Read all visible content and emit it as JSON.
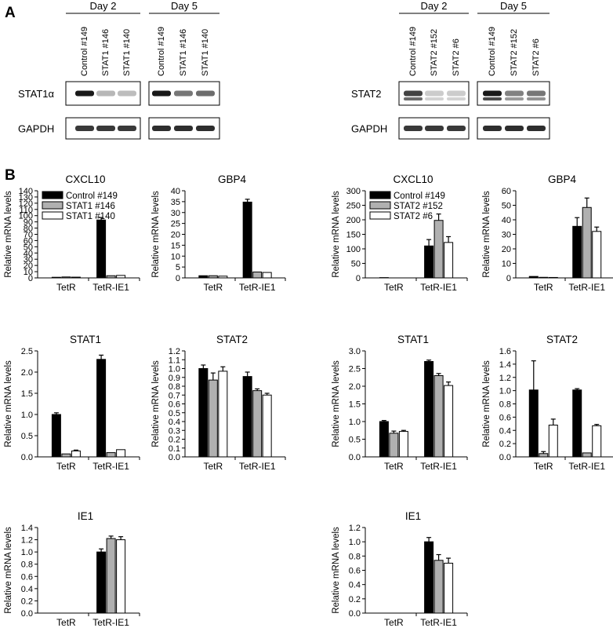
{
  "panels": {
    "a": "A",
    "b": "B"
  },
  "blots": {
    "left": {
      "days": [
        "Day 2",
        "Day 5"
      ],
      "lanes": [
        "Control #149",
        "STAT1 #146",
        "STAT1 #140"
      ],
      "rows": [
        "STAT1α",
        "GAPDH"
      ]
    },
    "right": {
      "days": [
        "Day 2",
        "Day 5"
      ],
      "lanes": [
        "Control #149",
        "STAT2 #152",
        "STAT2 #6"
      ],
      "rows": [
        "STAT2",
        "GAPDH"
      ]
    }
  },
  "ylabel": "Relative mRNA levels",
  "categories": [
    "TetR",
    "TetR-IE1"
  ],
  "series_colors": [
    "#000000",
    "#b0b0b0",
    "#ffffff"
  ],
  "chart_data": [
    {
      "type": "bar",
      "title": "CXCL10",
      "categories": [
        "TetR",
        "TetR-IE1"
      ],
      "ylabel": "Relative mRNA levels",
      "ylim": [
        0,
        140
      ],
      "ticks": [
        0,
        10,
        20,
        30,
        40,
        50,
        60,
        70,
        80,
        90,
        100,
        110,
        120,
        130,
        140
      ],
      "legend": [
        "Control #149",
        "STAT1 #146",
        "STAT1 #140"
      ],
      "series": [
        {
          "name": "Control #149",
          "values": [
            1.0,
            93
          ],
          "err": [
            0,
            4
          ]
        },
        {
          "name": "STAT1 #146",
          "values": [
            1.5,
            3.5
          ],
          "err": [
            0,
            0
          ]
        },
        {
          "name": "STAT1 #140",
          "values": [
            1.2,
            4
          ],
          "err": [
            0,
            0
          ]
        }
      ]
    },
    {
      "type": "bar",
      "title": "GBP4",
      "categories": [
        "TetR",
        "TetR-IE1"
      ],
      "ylabel": "Relative mRNA levels",
      "ylim": [
        0,
        40
      ],
      "ticks": [
        0,
        5,
        10,
        15,
        20,
        25,
        30,
        35,
        40
      ],
      "series": [
        {
          "values": [
            1.0,
            34.8
          ],
          "err": [
            0,
            1.3
          ]
        },
        {
          "values": [
            1.0,
            2.7
          ],
          "err": [
            0,
            0
          ]
        },
        {
          "values": [
            0.8,
            2.5
          ],
          "err": [
            0,
            0
          ]
        }
      ]
    },
    {
      "type": "bar",
      "title": "CXCL10",
      "categories": [
        "TetR",
        "TetR-IE1"
      ],
      "ylabel": "Relative mRNA levels",
      "ylim": [
        0,
        300
      ],
      "ticks": [
        0,
        50,
        100,
        150,
        200,
        250,
        300
      ],
      "legend": [
        "Control #149",
        "STAT2 #152",
        "STAT2 #6"
      ],
      "series": [
        {
          "name": "Control #149",
          "values": [
            1.0,
            110
          ],
          "err": [
            0,
            22
          ]
        },
        {
          "name": "STAT2 #152",
          "values": [
            0.5,
            198
          ],
          "err": [
            0,
            22
          ]
        },
        {
          "name": "STAT2 #6",
          "values": [
            0.5,
            122
          ],
          "err": [
            0,
            20
          ]
        }
      ]
    },
    {
      "type": "bar",
      "title": "GBP4",
      "categories": [
        "TetR",
        "TetR-IE1"
      ],
      "ylabel": "Relative mRNA levels",
      "ylim": [
        0,
        60
      ],
      "ticks": [
        0,
        10,
        20,
        30,
        40,
        50,
        60
      ],
      "series": [
        {
          "values": [
            1.0,
            35.5
          ],
          "err": [
            0,
            6
          ]
        },
        {
          "values": [
            0.4,
            48.5
          ],
          "err": [
            0,
            6.5
          ]
        },
        {
          "values": [
            0.3,
            32
          ],
          "err": [
            0,
            3
          ]
        }
      ]
    },
    {
      "type": "bar",
      "title": "STAT1",
      "categories": [
        "TetR",
        "TetR-IE1"
      ],
      "ylabel": "Relative mRNA levels",
      "ylim": [
        0,
        2.5
      ],
      "ticks": [
        "0.0",
        "0.5",
        "1.0",
        "1.5",
        "2.0",
        "2.5"
      ],
      "series": [
        {
          "values": [
            1.0,
            2.3
          ],
          "err": [
            0.04,
            0.1
          ]
        },
        {
          "values": [
            0.07,
            0.1
          ],
          "err": [
            0,
            0
          ]
        },
        {
          "values": [
            0.14,
            0.17
          ],
          "err": [
            0.02,
            0
          ]
        }
      ]
    },
    {
      "type": "bar",
      "title": "STAT2",
      "categories": [
        "TetR",
        "TetR-IE1"
      ],
      "ylabel": "Relative mRNA levels",
      "ylim": [
        0,
        1.2
      ],
      "ticks": [
        "0.0",
        "0.1",
        "0.2",
        "0.3",
        "0.4",
        "0.5",
        "0.6",
        "0.7",
        "0.8",
        "0.9",
        "1.0",
        "1.1",
        "1.2"
      ],
      "series": [
        {
          "values": [
            1.0,
            0.91
          ],
          "err": [
            0.04,
            0.05
          ]
        },
        {
          "values": [
            0.87,
            0.75
          ],
          "err": [
            0.08,
            0.02
          ]
        },
        {
          "values": [
            0.97,
            0.7
          ],
          "err": [
            0.05,
            0.02
          ]
        }
      ]
    },
    {
      "type": "bar",
      "title": "STAT1",
      "categories": [
        "TetR",
        "TetR-IE1"
      ],
      "ylabel": "Relative mRNA levels",
      "ylim": [
        0,
        3.0
      ],
      "ticks": [
        "0.0",
        "0.5",
        "1.0",
        "1.5",
        "2.0",
        "2.5",
        "3.0"
      ],
      "series": [
        {
          "values": [
            1.0,
            2.7
          ],
          "err": [
            0.03,
            0.04
          ]
        },
        {
          "values": [
            0.67,
            2.3
          ],
          "err": [
            0.06,
            0.06
          ]
        },
        {
          "values": [
            0.72,
            2.02
          ],
          "err": [
            0.03,
            0.1
          ]
        }
      ]
    },
    {
      "type": "bar",
      "title": "STAT2",
      "categories": [
        "TetR",
        "TetR-IE1"
      ],
      "ylabel": "Relative mRNA levels",
      "ylim": [
        0,
        1.6
      ],
      "ticks": [
        "0.0",
        "0.2",
        "0.4",
        "0.6",
        "0.8",
        "1.0",
        "1.2",
        "1.4",
        "1.6"
      ],
      "series": [
        {
          "values": [
            1.01,
            1.01
          ],
          "err": [
            0.44,
            0.02
          ]
        },
        {
          "values": [
            0.05,
            0.06
          ],
          "err": [
            0.03,
            0
          ]
        },
        {
          "values": [
            0.48,
            0.47
          ],
          "err": [
            0.09,
            0.02
          ]
        }
      ]
    },
    {
      "type": "bar",
      "title": "IE1",
      "categories": [
        "TetR",
        "TetR-IE1"
      ],
      "ylabel": "Relative mRNA levels",
      "ylim": [
        0,
        1.4
      ],
      "ticks": [
        "0.0",
        "0.2",
        "0.4",
        "0.6",
        "0.8",
        "1.0",
        "1.2",
        "1.4"
      ],
      "series": [
        {
          "values": [
            0,
            1.0
          ],
          "err": [
            0,
            0.05
          ]
        },
        {
          "values": [
            0,
            1.22
          ],
          "err": [
            0,
            0.04
          ]
        },
        {
          "values": [
            0,
            1.2
          ],
          "err": [
            0,
            0.05
          ]
        }
      ]
    },
    {
      "type": "bar",
      "title": "IE1",
      "categories": [
        "TetR",
        "TetR-IE1"
      ],
      "ylabel": "Relative mRNA levels",
      "ylim": [
        0,
        1.2
      ],
      "ticks": [
        "0.0",
        "0.2",
        "0.4",
        "0.6",
        "0.8",
        "1.0",
        "1.2"
      ],
      "series": [
        {
          "values": [
            0,
            1.0
          ],
          "err": [
            0,
            0.06
          ]
        },
        {
          "values": [
            0,
            0.74
          ],
          "err": [
            0,
            0.08
          ]
        },
        {
          "values": [
            0,
            0.7
          ],
          "err": [
            0,
            0.07
          ]
        }
      ]
    }
  ]
}
